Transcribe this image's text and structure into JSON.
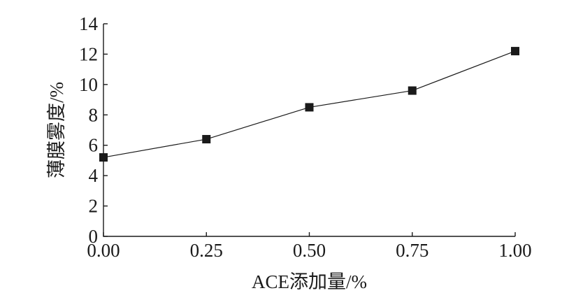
{
  "chart_data": {
    "type": "line",
    "title": "",
    "xlabel": "ACE添加量/%",
    "ylabel": "薄膜雾度/%",
    "x": [
      0.0,
      0.25,
      0.5,
      0.75,
      1.0
    ],
    "x_tick_labels": [
      "0.00",
      "0.25",
      "0.50",
      "0.75",
      "1.00"
    ],
    "y_tick_labels": [
      "0",
      "2",
      "4",
      "6",
      "8",
      "10",
      "12",
      "14"
    ],
    "xlim": [
      0,
      1
    ],
    "ylim": [
      0,
      14
    ],
    "grid": false,
    "series": [
      {
        "values": [
          5.2,
          6.4,
          8.5,
          9.6,
          12.2
        ],
        "error": [
          0.2,
          0.2,
          0.2,
          0.2,
          0.2
        ]
      }
    ],
    "colors": {
      "line": "#1a1a1a",
      "marker": "#1a1a1a"
    }
  }
}
